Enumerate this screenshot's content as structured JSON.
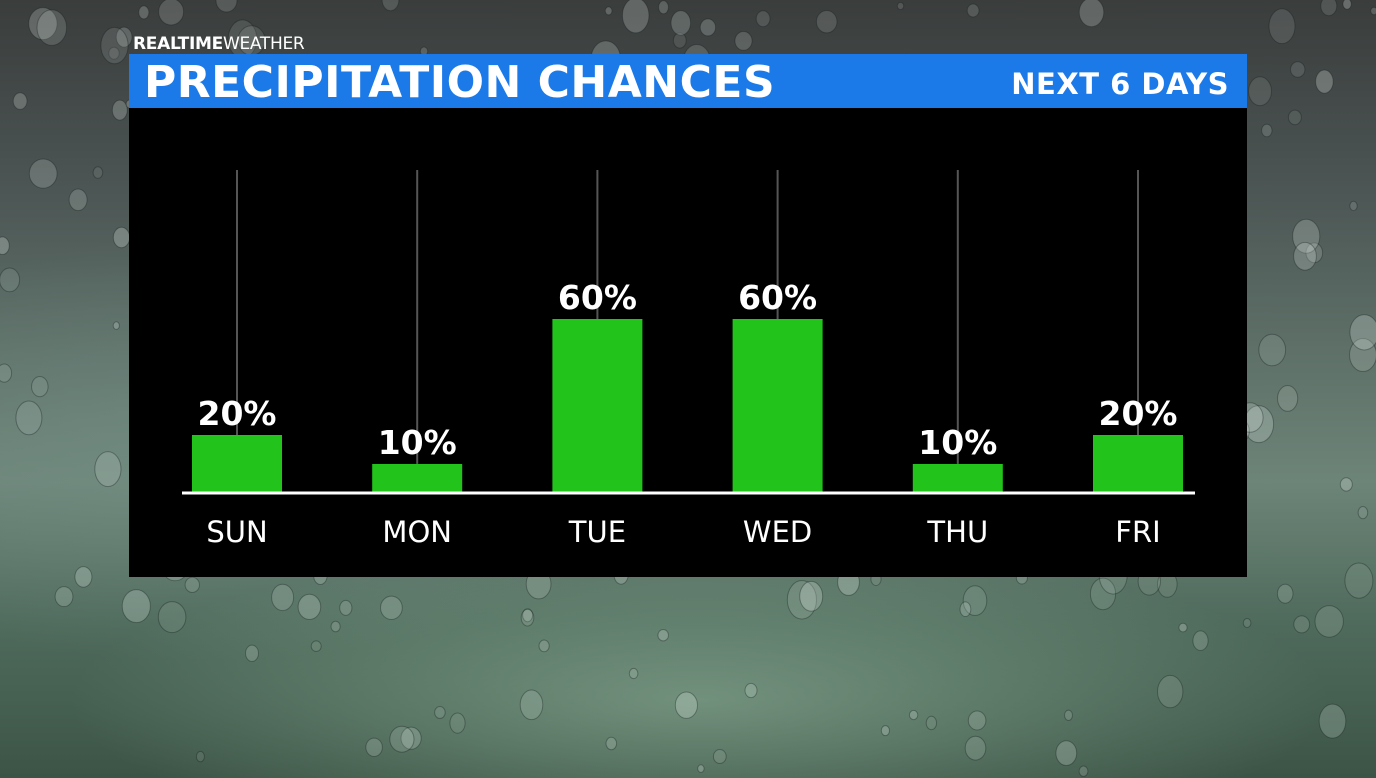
{
  "brand": {
    "bold": "REALTIME",
    "light": "WEATHER"
  },
  "header": {
    "title": "PRECIPITATION CHANCES",
    "subtitle": "NEXT 6 DAYS"
  },
  "colors": {
    "header_bar": "#1c7ae8",
    "bar": "#22c41c",
    "panel": "#000000",
    "text": "#ffffff"
  },
  "chart_data": {
    "type": "bar",
    "categories": [
      "SUN",
      "MON",
      "TUE",
      "WED",
      "THU",
      "FRI"
    ],
    "values": [
      20,
      10,
      60,
      60,
      10,
      20
    ],
    "value_labels": [
      "20%",
      "10%",
      "60%",
      "60%",
      "10%",
      "20%"
    ],
    "title": "PRECIPITATION CHANCES",
    "subtitle": "NEXT 6 DAYS",
    "unit": "%",
    "xlabel": "",
    "ylabel": "",
    "ylim": [
      0,
      100
    ],
    "grid": false,
    "legend": "none"
  }
}
